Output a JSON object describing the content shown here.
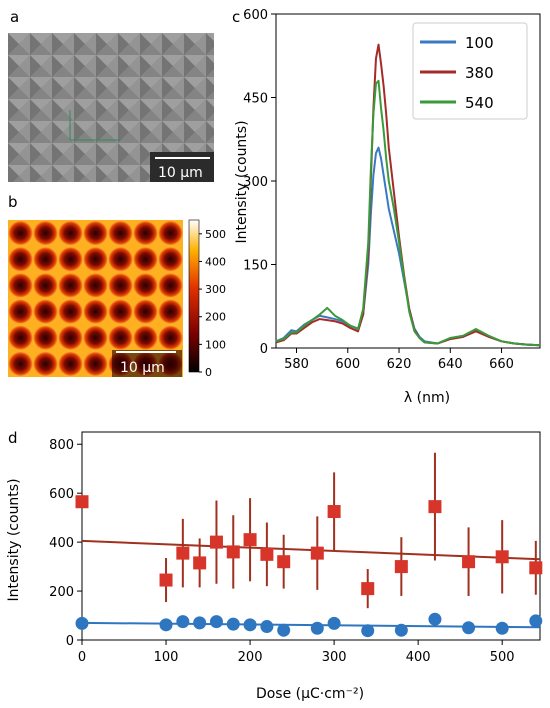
{
  "colors": {
    "blue": "#3a78c2",
    "red": "#a52a2a",
    "green": "#3a9a3a",
    "square_red": "#d8352a",
    "dot_blue": "#2e77c0",
    "sem_bg": "#808080",
    "heat_dark": "#2a0000",
    "heat_bright": "#ffd24a"
  },
  "panel_labels": {
    "a": "a",
    "b": "b",
    "c": "c",
    "d": "d"
  },
  "panel_a": {
    "type": "sem-micrograph",
    "scalebar_label": "10 μm"
  },
  "panel_b": {
    "type": "heatmap",
    "scalebar_label": "10 μm",
    "colorbar_ticks": [
      "500",
      "400",
      "300",
      "200",
      "100",
      "0"
    ],
    "colorbar_range": [
      0,
      550
    ]
  },
  "chart_data": [
    {
      "type": "line",
      "panel": "c",
      "xlabel": "λ (nm)",
      "ylabel": "Intensity (counts)",
      "xlim": [
        572,
        675
      ],
      "ylim": [
        0,
        600
      ],
      "x_ticks": [
        580,
        600,
        620,
        640,
        660
      ],
      "y_ticks": [
        0,
        150,
        300,
        450,
        600
      ],
      "legend_position": "top-right",
      "x": [
        572,
        575,
        578,
        580,
        583,
        586,
        589,
        592,
        595,
        598,
        601,
        604,
        606,
        608,
        609,
        610,
        611,
        612,
        613,
        614,
        615,
        616,
        618,
        620,
        622,
        624,
        626,
        628,
        630,
        635,
        640,
        645,
        650,
        655,
        660,
        665,
        670,
        675
      ],
      "series": [
        {
          "name": "100",
          "color": "blue",
          "values": [
            12,
            18,
            32,
            30,
            42,
            50,
            58,
            55,
            52,
            48,
            40,
            35,
            60,
            150,
            240,
            310,
            350,
            360,
            340,
            310,
            280,
            250,
            210,
            170,
            120,
            70,
            35,
            20,
            12,
            8,
            18,
            20,
            32,
            20,
            12,
            8,
            6,
            5
          ]
        },
        {
          "name": "380",
          "color": "red",
          "values": [
            10,
            14,
            26,
            26,
            36,
            46,
            52,
            50,
            48,
            44,
            36,
            30,
            60,
            170,
            300,
            430,
            520,
            545,
            510,
            470,
            420,
            360,
            280,
            200,
            130,
            70,
            32,
            18,
            10,
            8,
            16,
            20,
            30,
            20,
            12,
            8,
            6,
            5
          ]
        },
        {
          "name": "540",
          "color": "green",
          "values": [
            12,
            16,
            28,
            28,
            40,
            50,
            60,
            72,
            58,
            50,
            40,
            34,
            70,
            190,
            320,
            420,
            475,
            480,
            430,
            390,
            340,
            300,
            250,
            190,
            125,
            65,
            30,
            18,
            10,
            8,
            18,
            22,
            34,
            22,
            12,
            8,
            6,
            5
          ]
        }
      ]
    },
    {
      "type": "scatter",
      "panel": "d",
      "xlabel": "Dose (μC·cm⁻²)",
      "ylabel": "Intensity (counts)",
      "xlim": [
        0,
        545
      ],
      "ylim": [
        0,
        850
      ],
      "x_ticks": [
        0,
        100,
        200,
        300,
        400,
        500
      ],
      "y_ticks": [
        0,
        200,
        400,
        600,
        800
      ],
      "series": [
        {
          "marker": "square",
          "color": "square_red",
          "x": [
            0,
            100,
            120,
            140,
            160,
            180,
            200,
            220,
            240,
            280,
            300,
            340,
            380,
            420,
            460,
            500,
            540
          ],
          "y": [
            565,
            245,
            355,
            315,
            400,
            360,
            410,
            350,
            320,
            355,
            525,
            210,
            300,
            545,
            320,
            340,
            295
          ],
          "err": [
            0,
            90,
            140,
            100,
            170,
            150,
            170,
            130,
            110,
            150,
            160,
            80,
            120,
            220,
            140,
            150,
            110
          ],
          "fit": {
            "x": [
              0,
              545
            ],
            "y": [
              405,
              330
            ]
          }
        },
        {
          "marker": "circle",
          "color": "dot_blue",
          "x": [
            0,
            100,
            120,
            140,
            160,
            180,
            200,
            220,
            240,
            280,
            300,
            340,
            380,
            420,
            460,
            500,
            540
          ],
          "y": [
            68,
            62,
            75,
            70,
            75,
            65,
            62,
            55,
            40,
            48,
            68,
            38,
            40,
            85,
            50,
            48,
            78
          ],
          "err": [
            0,
            0,
            0,
            0,
            0,
            0,
            0,
            0,
            0,
            0,
            0,
            0,
            0,
            0,
            0,
            0,
            0
          ],
          "fit": {
            "x": [
              0,
              545
            ],
            "y": [
              70,
              52
            ]
          }
        }
      ]
    }
  ]
}
